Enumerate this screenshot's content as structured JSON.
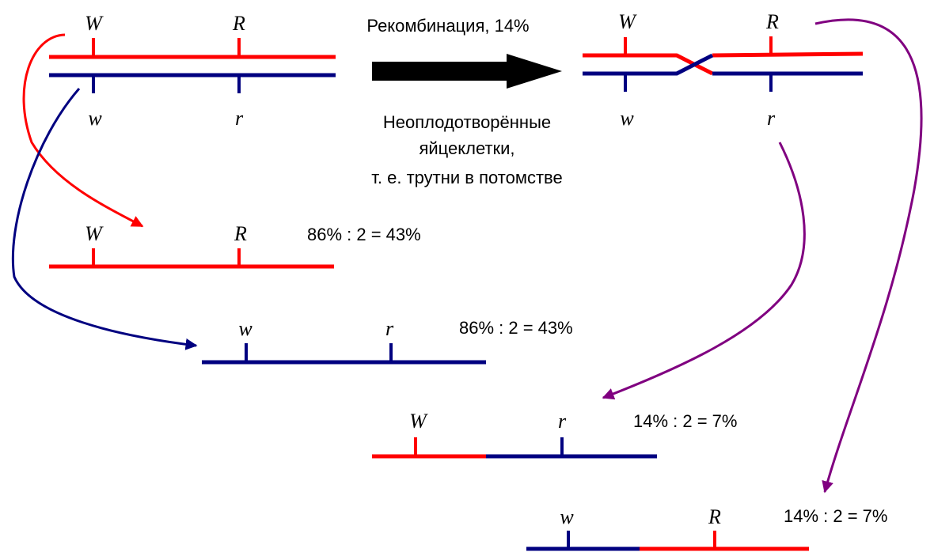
{
  "colors": {
    "red": "#ff0000",
    "blue": "#000080",
    "purple": "#800080",
    "black": "#000000"
  },
  "top_left_pair": {
    "upper_alleles": [
      "W",
      "R"
    ],
    "lower_alleles": [
      "w",
      "r"
    ]
  },
  "arrow": {
    "top_label": "Рекомбинация, 14%",
    "bottom_label_lines": [
      "Неоплодотворённые",
      "яйцеклетки,",
      "т. е. трутни в потомстве"
    ]
  },
  "top_right_pair": {
    "upper_alleles": [
      "W",
      "R"
    ],
    "lower_alleles": [
      "w",
      "r"
    ]
  },
  "offspring": [
    {
      "alleles": [
        "W",
        "R"
      ],
      "ratio": "86% : 2 = 43%"
    },
    {
      "alleles": [
        "w",
        "r"
      ],
      "ratio": "86% : 2 = 43%"
    },
    {
      "alleles": [
        "W",
        "r"
      ],
      "ratio": "14% : 2 = 7%"
    },
    {
      "alleles": [
        "w",
        "R"
      ],
      "ratio": "14% : 2 = 7%"
    }
  ]
}
